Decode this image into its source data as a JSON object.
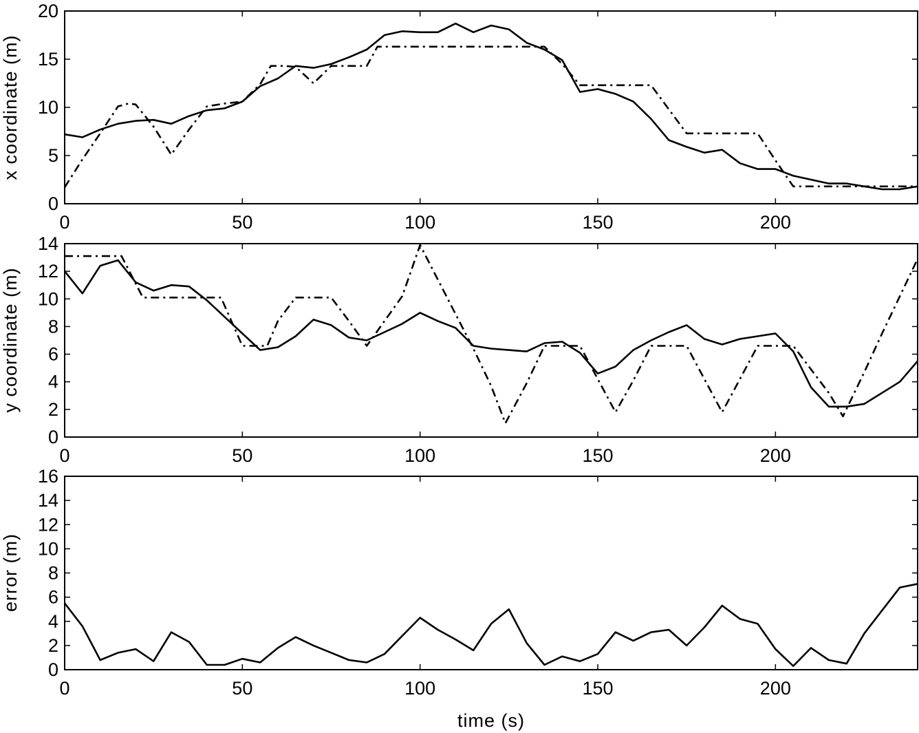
{
  "chart_data": [
    {
      "type": "line",
      "ylabel": "x coordinate (m)",
      "xlabel": "",
      "xlim": [
        0,
        240
      ],
      "ylim": [
        0,
        20
      ],
      "xticks": [
        0,
        50,
        100,
        150,
        200
      ],
      "yticks": [
        0,
        5,
        10,
        15,
        20
      ],
      "grid": false,
      "series": [
        {
          "style": "solid",
          "color": "#000000",
          "x": [
            0,
            5,
            10,
            15,
            20,
            25,
            30,
            35,
            40,
            45,
            50,
            55,
            60,
            65,
            70,
            75,
            80,
            85,
            90,
            95,
            100,
            105,
            110,
            115,
            120,
            125,
            130,
            135,
            140,
            145,
            150,
            155,
            160,
            165,
            170,
            175,
            180,
            185,
            190,
            195,
            200,
            205,
            210,
            215,
            220,
            225,
            230,
            235,
            240
          ],
          "y": [
            7.2,
            6.9,
            7.7,
            8.3,
            8.6,
            8.7,
            8.3,
            9.1,
            9.7,
            9.9,
            10.6,
            12.2,
            13.0,
            14.3,
            14.1,
            14.5,
            15.2,
            16.0,
            17.5,
            17.9,
            17.8,
            17.8,
            18.7,
            17.8,
            18.5,
            18.1,
            16.7,
            16.0,
            14.9,
            11.6,
            11.9,
            11.4,
            10.6,
            8.8,
            6.6,
            5.9,
            5.3,
            5.6,
            4.2,
            3.6,
            3.6,
            2.9,
            2.5,
            2.1,
            2.1,
            1.8,
            1.5,
            1.5,
            1.8
          ]
        },
        {
          "style": "dashdot",
          "color": "#000000",
          "x": [
            0,
            5,
            10,
            15,
            18,
            20,
            25,
            30,
            35,
            40,
            45,
            50,
            55,
            58,
            62,
            65,
            70,
            75,
            80,
            85,
            88,
            100,
            110,
            120,
            125,
            130,
            135,
            140,
            145,
            150,
            160,
            165,
            170,
            175,
            180,
            185,
            190,
            195,
            200,
            205,
            210,
            215,
            220,
            225,
            230,
            235,
            240
          ],
          "y": [
            1.7,
            4.6,
            7.3,
            10.1,
            10.4,
            10.3,
            8.0,
            5.1,
            7.7,
            10.1,
            10.4,
            10.6,
            12.4,
            14.3,
            14.3,
            14.2,
            12.5,
            14.3,
            14.3,
            14.3,
            16.3,
            16.3,
            16.3,
            16.3,
            16.3,
            16.3,
            16.3,
            14.5,
            12.3,
            12.3,
            12.3,
            12.3,
            9.8,
            7.3,
            7.3,
            7.3,
            7.3,
            7.3,
            4.5,
            1.8,
            1.8,
            1.8,
            1.8,
            1.8,
            1.8,
            1.8,
            1.8
          ]
        }
      ]
    },
    {
      "type": "line",
      "ylabel": "y coordinate (m)",
      "xlabel": "",
      "xlim": [
        0,
        240
      ],
      "ylim": [
        0,
        14
      ],
      "xticks": [
        0,
        50,
        100,
        150,
        200
      ],
      "yticks": [
        0,
        2,
        4,
        6,
        8,
        10,
        12,
        14
      ],
      "grid": false,
      "series": [
        {
          "style": "solid",
          "color": "#000000",
          "x": [
            0,
            5,
            10,
            15,
            20,
            25,
            30,
            35,
            40,
            45,
            50,
            55,
            60,
            65,
            70,
            75,
            80,
            85,
            90,
            95,
            100,
            105,
            110,
            115,
            120,
            125,
            130,
            135,
            140,
            145,
            150,
            155,
            160,
            165,
            170,
            175,
            180,
            185,
            190,
            195,
            200,
            205,
            210,
            215,
            220,
            225,
            230,
            235,
            240
          ],
          "y": [
            12.0,
            10.4,
            12.4,
            12.8,
            11.2,
            10.6,
            11.0,
            10.9,
            9.9,
            8.7,
            7.5,
            6.3,
            6.5,
            7.3,
            8.5,
            8.1,
            7.2,
            7.0,
            7.6,
            8.2,
            9.0,
            8.4,
            7.9,
            6.6,
            6.4,
            6.3,
            6.2,
            6.8,
            6.9,
            6.1,
            4.6,
            5.1,
            6.3,
            7.0,
            7.6,
            8.1,
            7.1,
            6.7,
            7.1,
            7.3,
            7.5,
            6.2,
            3.6,
            2.2,
            2.2,
            2.4,
            3.2,
            4.0,
            5.5
          ]
        },
        {
          "style": "dashdot",
          "color": "#000000",
          "x": [
            0,
            5,
            10,
            15,
            16,
            22,
            30,
            35,
            40,
            44,
            50,
            57,
            60,
            65,
            70,
            75,
            80,
            85,
            90,
            95,
            100,
            105,
            110,
            115,
            120,
            124,
            130,
            135,
            140,
            145,
            150,
            155,
            160,
            165,
            170,
            175,
            180,
            185,
            190,
            195,
            200,
            205,
            210,
            215,
            219,
            225,
            230,
            235,
            240
          ],
          "y": [
            13.1,
            13.1,
            13.1,
            13.1,
            13.1,
            10.1,
            10.1,
            10.1,
            10.1,
            10.1,
            6.6,
            6.6,
            8.4,
            10.1,
            10.1,
            10.1,
            8.4,
            6.6,
            8.4,
            10.2,
            13.9,
            11.4,
            8.9,
            6.4,
            3.7,
            1.0,
            3.9,
            6.6,
            6.6,
            6.6,
            4.2,
            1.8,
            4.1,
            6.6,
            6.6,
            6.6,
            4.2,
            1.8,
            4.2,
            6.6,
            6.6,
            6.6,
            4.9,
            3.2,
            1.5,
            4.7,
            7.5,
            10.2,
            12.9
          ]
        }
      ]
    },
    {
      "type": "line",
      "ylabel": "error (m)",
      "xlabel": "time (s)",
      "xlim": [
        0,
        240
      ],
      "ylim": [
        0,
        16
      ],
      "xticks": [
        0,
        50,
        100,
        150,
        200
      ],
      "yticks": [
        0,
        2,
        4,
        6,
        8,
        10,
        12,
        14,
        16
      ],
      "grid": false,
      "series": [
        {
          "style": "solid",
          "color": "#000000",
          "x": [
            0,
            5,
            10,
            15,
            20,
            25,
            30,
            35,
            40,
            45,
            50,
            55,
            60,
            65,
            70,
            75,
            80,
            85,
            90,
            95,
            100,
            105,
            110,
            115,
            120,
            125,
            130,
            135,
            140,
            145,
            150,
            155,
            160,
            165,
            170,
            175,
            180,
            185,
            190,
            195,
            200,
            205,
            210,
            215,
            220,
            225,
            230,
            235,
            240
          ],
          "y": [
            5.5,
            3.6,
            0.8,
            1.4,
            1.7,
            0.7,
            3.1,
            2.3,
            0.4,
            0.4,
            0.9,
            0.6,
            1.8,
            2.7,
            2.0,
            1.4,
            0.8,
            0.6,
            1.3,
            2.8,
            4.3,
            3.3,
            2.5,
            1.6,
            3.8,
            5.0,
            2.2,
            0.4,
            1.1,
            0.7,
            1.3,
            3.1,
            2.4,
            3.1,
            3.3,
            2.0,
            3.5,
            5.3,
            4.2,
            3.8,
            1.7,
            0.3,
            1.8,
            0.8,
            0.5,
            3.0,
            4.9,
            6.8,
            7.1
          ]
        }
      ]
    }
  ]
}
